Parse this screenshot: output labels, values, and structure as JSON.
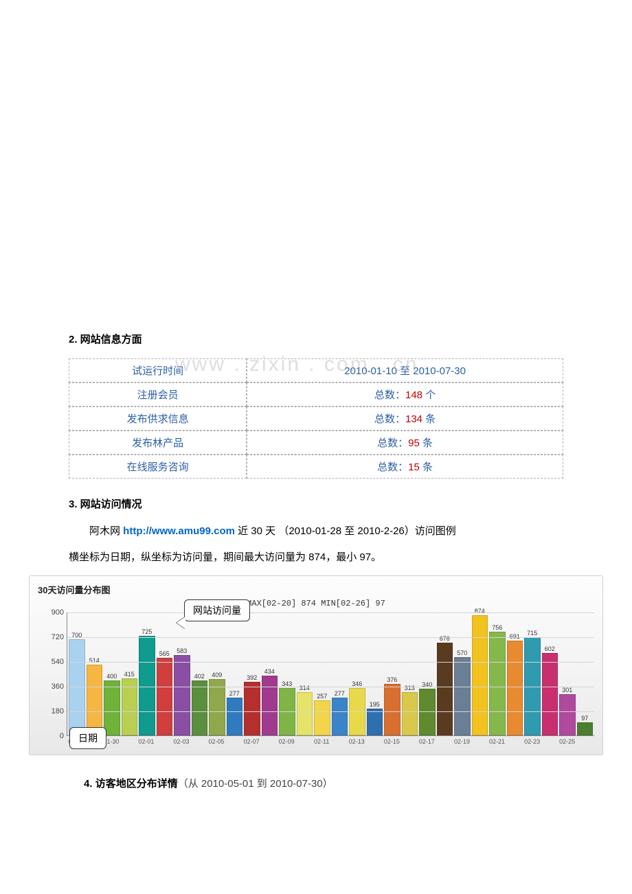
{
  "section2": {
    "heading": "2. 网站信息方面",
    "rows": [
      {
        "label": "试运行时间",
        "value_prefix": "",
        "value_red": "",
        "value_plain": "2010-01-10 至 2010-07-30"
      },
      {
        "label": "注册会员",
        "value_prefix": "总数：",
        "value_red": "148",
        "value_suffix": " 个"
      },
      {
        "label": "发布供求信息",
        "value_prefix": "总数：",
        "value_red": "134",
        "value_suffix": " 条"
      },
      {
        "label": "发布林产品",
        "value_prefix": "总数：",
        "value_red": "95",
        "value_suffix": " 条"
      },
      {
        "label": "在线服务咨询",
        "value_prefix": "总数：",
        "value_red": "15",
        "value_suffix": " 条"
      }
    ]
  },
  "section3": {
    "heading": "3.  网站访问情况",
    "para1_pre": "阿木网 ",
    "para1_link": "http://www.amu99.com",
    "para1_post": "  近 30 天 （2010-01-28 至 2010-2-26）访问图例",
    "para2": "横坐标为日期，纵坐标为访问量，期间最大访问量为 874，最小 97。",
    "watermark": "www . zixin . com . cn"
  },
  "chart": {
    "title": "30天访问量分布图",
    "minmax": "MAX[02-20] 874  MIN[02-26] 97",
    "callout_visits": "网站访问量",
    "callout_date": "日期",
    "y_max": 900,
    "y_ticks": [
      0,
      180,
      360,
      540,
      720,
      900
    ],
    "x_tick_every": 2,
    "bars": [
      {
        "date": "01-28",
        "value": 700,
        "color": "#a9d2ef"
      },
      {
        "date": "01-29",
        "value": 514,
        "color": "#f5b642"
      },
      {
        "date": "01-30",
        "value": 400,
        "color": "#6fb23a"
      },
      {
        "date": "01-31",
        "value": 415,
        "color": "#b8cf52"
      },
      {
        "date": "02-01",
        "value": 725,
        "color": "#0f9b8e"
      },
      {
        "date": "02-02",
        "value": 565,
        "color": "#d03e3e"
      },
      {
        "date": "02-03",
        "value": 583,
        "color": "#8a4fa3"
      },
      {
        "date": "02-04",
        "value": 402,
        "color": "#5a8f3d"
      },
      {
        "date": "02-05",
        "value": 409,
        "color": "#8fa84c"
      },
      {
        "date": "02-06",
        "value": 277,
        "color": "#2f7bbf"
      },
      {
        "date": "02-07",
        "value": 392,
        "color": "#b52f2f"
      },
      {
        "date": "02-08",
        "value": 434,
        "color": "#a03a8f"
      },
      {
        "date": "02-09",
        "value": 343,
        "color": "#7fb547"
      },
      {
        "date": "02-10",
        "value": 314,
        "color": "#e6e36a"
      },
      {
        "date": "02-11",
        "value": 257,
        "color": "#f2d54a"
      },
      {
        "date": "02-12",
        "value": 277,
        "color": "#3a84c9"
      },
      {
        "date": "02-13",
        "value": 346,
        "color": "#e8d94a"
      },
      {
        "date": "02-14",
        "value": 195,
        "color": "#2f6fb0"
      },
      {
        "date": "02-15",
        "value": 376,
        "color": "#d96f2f"
      },
      {
        "date": "02-16",
        "value": 313,
        "color": "#d9c94a"
      },
      {
        "date": "02-17",
        "value": 340,
        "color": "#5f8a2f"
      },
      {
        "date": "02-18",
        "value": 676,
        "color": "#5a3b1f"
      },
      {
        "date": "02-19",
        "value": 570,
        "color": "#6a7f94"
      },
      {
        "date": "02-20",
        "value": 874,
        "color": "#f2c21f"
      },
      {
        "date": "02-21",
        "value": 756,
        "color": "#85b84a"
      },
      {
        "date": "02-22",
        "value": 691,
        "color": "#e88a2f"
      },
      {
        "date": "02-23",
        "value": 715,
        "color": "#2f9bb0"
      },
      {
        "date": "02-24",
        "value": 602,
        "color": "#c92f6f"
      },
      {
        "date": "02-25",
        "value": 301,
        "color": "#b04a9f"
      },
      {
        "date": "02-26",
        "value": 97,
        "color": "#4a7f2f"
      }
    ],
    "grid_color": "#d5d5d5",
    "axis_color": "#888888",
    "bg_gradient_top": "#fdfdfd",
    "bg_gradient_bottom": "#e8e8e8"
  },
  "section4": {
    "num": "4.",
    "title": "访客地区分布详情",
    "sub": "（从 2010-05-01 到 2010-07-30）"
  }
}
